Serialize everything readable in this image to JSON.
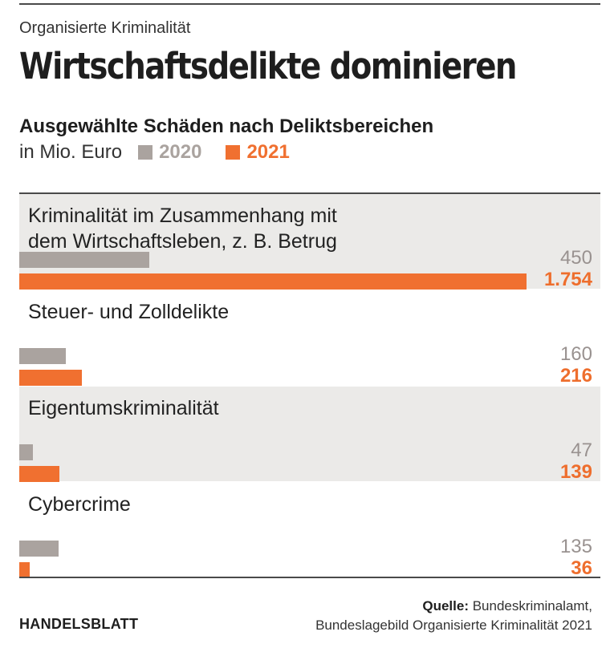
{
  "header": {
    "kicker": "Organisierte Kriminalität",
    "title": "Wirtschaftsdelikte dominieren",
    "subtitle": "Ausgewählte Schäden nach Deliktsbereichen",
    "unit": "in Mio. Euro"
  },
  "legend": [
    {
      "label": "2020",
      "color": "#aaa39f"
    },
    {
      "label": "2021",
      "color": "#f07030"
    }
  ],
  "chart_data": {
    "type": "bar",
    "orientation": "horizontal",
    "title": "Wirtschaftsdelikte dominieren",
    "subtitle": "Ausgewählte Schäden nach Deliktsbereichen",
    "unit": "in Mio. Euro",
    "categories": [
      "Kriminalität im Zusammenhang mit dem Wirtschaftsleben, z. B. Betrug",
      "Steuer- und Zolldelikte",
      "Eigentumskriminalität",
      "Cybercrime"
    ],
    "category_lines": [
      [
        "Kriminalität im Zusammenhang mit",
        "dem Wirtschaftsleben, z. B. Betrug"
      ],
      [
        "Steuer- und Zolldelikte"
      ],
      [
        "Eigentumskriminalität"
      ],
      [
        "Cybercrime"
      ]
    ],
    "series": [
      {
        "name": "2020",
        "values": [
          450,
          160,
          47,
          135
        ],
        "labels": [
          "450",
          "160",
          "47",
          "135"
        ]
      },
      {
        "name": "2021",
        "values": [
          1754,
          216,
          139,
          36
        ],
        "labels": [
          "1.754",
          "216",
          "139",
          "36"
        ]
      }
    ],
    "xlim": [
      0,
      1754
    ],
    "legend_position": "top-left"
  },
  "footer": {
    "brand": "HANDELSBLATT",
    "source_label": "Quelle:",
    "source_line1": "Bundeskriminalamt,",
    "source_line2": "Bundeslagebild Organisierte Kriminalität 2021"
  }
}
